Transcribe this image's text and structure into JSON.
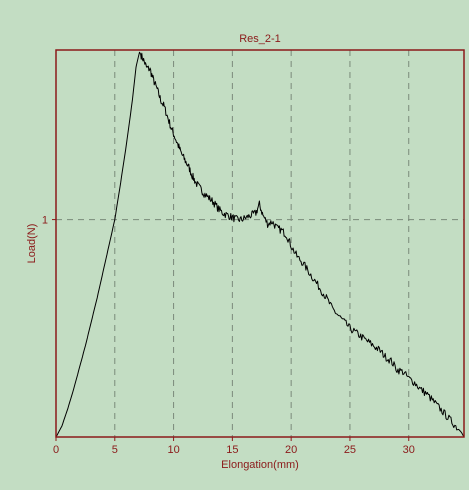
{
  "chart_data": {
    "type": "line",
    "title": "Res_2-1",
    "xlabel": "Elongation(mm)",
    "ylabel": "Load(N)",
    "xlim": [
      0,
      34.7
    ],
    "ylim": [
      0,
      1.78
    ],
    "x_ticks": [
      0,
      5,
      10,
      15,
      20,
      25,
      30
    ],
    "x_tick_labels": [
      "0",
      "5",
      "10",
      "15",
      "20",
      "25",
      "30"
    ],
    "y_ticks": [
      1
    ],
    "y_tick_labels": [
      "1"
    ],
    "grid": {
      "x": true,
      "y": true,
      "style": "dashed"
    },
    "legend": "none",
    "colors": {
      "background": "#c3ddc3",
      "frame": "#8b1a1a",
      "grid": "#7a8a7a",
      "series": "#000000",
      "text": "#8b1a1a"
    },
    "series": [
      {
        "points": [
          [
            0,
            0
          ],
          [
            0.5,
            0.05
          ],
          [
            1,
            0.13
          ],
          [
            1.5,
            0.22
          ],
          [
            2,
            0.32
          ],
          [
            2.5,
            0.42
          ],
          [
            3,
            0.53
          ],
          [
            3.5,
            0.64
          ],
          [
            4,
            0.76
          ],
          [
            4.5,
            0.88
          ],
          [
            5,
            1.0
          ],
          [
            5.5,
            1.17
          ],
          [
            6,
            1.35
          ],
          [
            6.5,
            1.55
          ],
          [
            6.8,
            1.7
          ],
          [
            7.1,
            1.77
          ],
          [
            7.4,
            1.74
          ],
          [
            7.7,
            1.7
          ],
          [
            8.0,
            1.69
          ],
          [
            8.3,
            1.64
          ],
          [
            8.6,
            1.6
          ],
          [
            8.9,
            1.55
          ],
          [
            9.2,
            1.52
          ],
          [
            9.5,
            1.47
          ],
          [
            9.8,
            1.42
          ],
          [
            10.1,
            1.38
          ],
          [
            10.4,
            1.34
          ],
          [
            10.7,
            1.3
          ],
          [
            11.0,
            1.27
          ],
          [
            11.3,
            1.24
          ],
          [
            11.6,
            1.2
          ],
          [
            11.9,
            1.17
          ],
          [
            12.3,
            1.14
          ],
          [
            12.6,
            1.12
          ],
          [
            13.0,
            1.1
          ],
          [
            13.4,
            1.08
          ],
          [
            13.8,
            1.05
          ],
          [
            14.2,
            1.03
          ],
          [
            14.6,
            1.02
          ],
          [
            15.0,
            1.01
          ],
          [
            15.4,
            1.0
          ],
          [
            15.8,
            1.0
          ],
          [
            16.2,
            1.01
          ],
          [
            16.6,
            1.02
          ],
          [
            17.0,
            1.03
          ],
          [
            17.3,
            1.07
          ],
          [
            17.6,
            1.02
          ],
          [
            18.0,
            0.98
          ],
          [
            18.4,
            0.99
          ],
          [
            18.8,
            0.96
          ],
          [
            19.2,
            0.95
          ],
          [
            19.6,
            0.93
          ],
          [
            20.0,
            0.88
          ],
          [
            20.5,
            0.83
          ],
          [
            21.0,
            0.8
          ],
          [
            21.5,
            0.76
          ],
          [
            22.0,
            0.72
          ],
          [
            22.5,
            0.68
          ],
          [
            23.0,
            0.64
          ],
          [
            23.5,
            0.59
          ],
          [
            24.0,
            0.56
          ],
          [
            24.5,
            0.53
          ],
          [
            25.0,
            0.5
          ],
          [
            25.5,
            0.48
          ],
          [
            26.0,
            0.46
          ],
          [
            26.5,
            0.44
          ],
          [
            27.0,
            0.42
          ],
          [
            27.5,
            0.4
          ],
          [
            28.0,
            0.37
          ],
          [
            28.5,
            0.35
          ],
          [
            29.0,
            0.31
          ],
          [
            29.5,
            0.3
          ],
          [
            30.0,
            0.27
          ],
          [
            30.5,
            0.25
          ],
          [
            31.0,
            0.22
          ],
          [
            31.5,
            0.2
          ],
          [
            32.0,
            0.17
          ],
          [
            32.5,
            0.14
          ],
          [
            33.0,
            0.11
          ],
          [
            33.5,
            0.08
          ],
          [
            34.0,
            0.05
          ],
          [
            34.5,
            0.02
          ],
          [
            34.7,
            0.0
          ]
        ]
      }
    ]
  }
}
